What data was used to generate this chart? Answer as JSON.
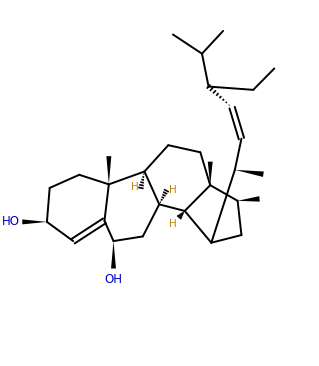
{
  "background": "#ffffff",
  "line_color": "#000000",
  "ho_color": "#0000bb",
  "lw": 1.4,
  "xlim": [
    -0.5,
    10.5
  ],
  "ylim": [
    -1.0,
    11.0
  ],
  "figsize": [
    3.19,
    3.66
  ],
  "dpi": 100
}
